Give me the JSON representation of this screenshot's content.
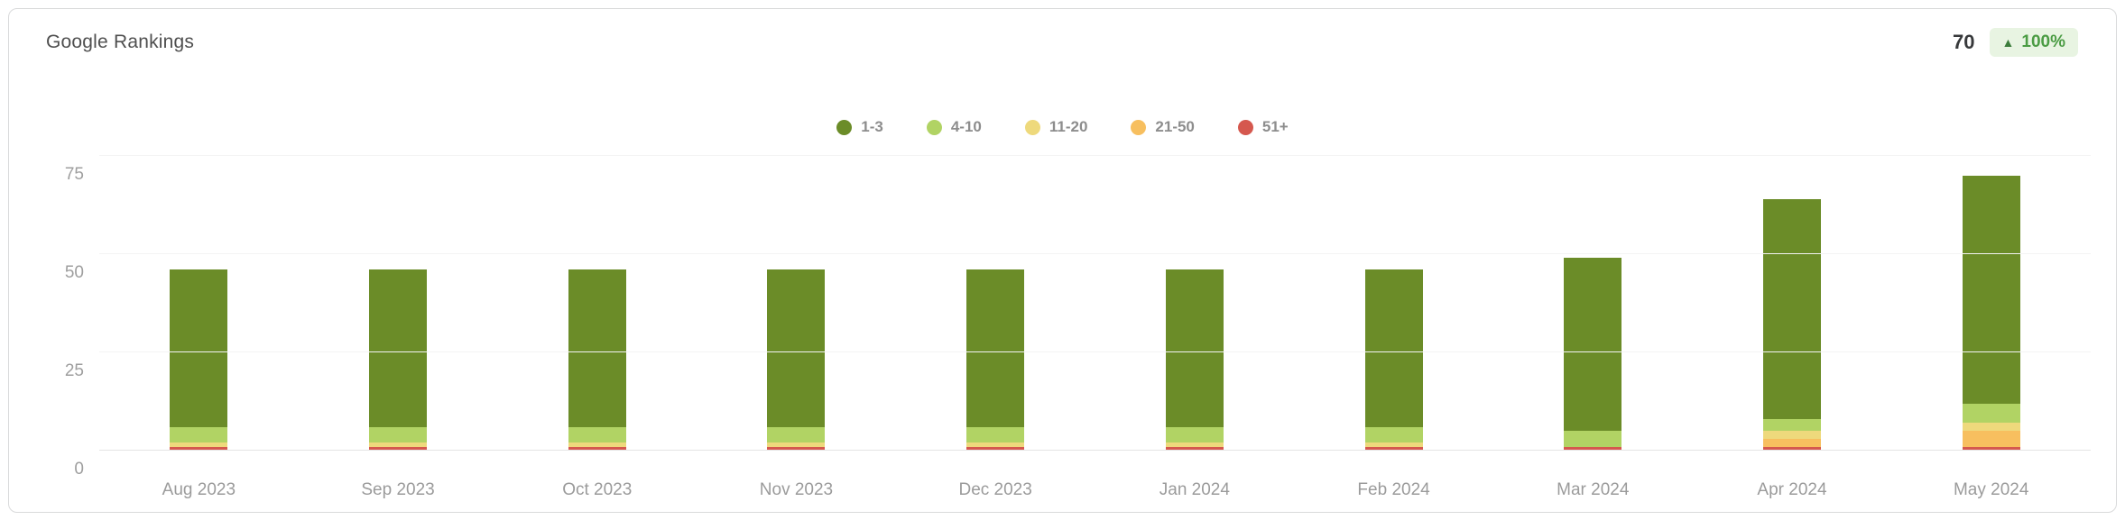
{
  "header": {
    "title": "Google Rankings",
    "current_value": "70",
    "change": "100%"
  },
  "icons": {
    "trend_up": "▲"
  },
  "chart_data": {
    "type": "bar",
    "stacked": true,
    "title": "Google Rankings",
    "xlabel": "",
    "ylabel": "",
    "categories": [
      "Aug 2023",
      "Sep 2023",
      "Oct 2023",
      "Nov 2023",
      "Dec 2023",
      "Jan 2024",
      "Feb 2024",
      "Mar 2024",
      "Apr 2024",
      "May 2024"
    ],
    "series": [
      {
        "name": "1-3",
        "color": "#6b8c28",
        "values": [
          40,
          40,
          40,
          40,
          40,
          40,
          40,
          44,
          56,
          58
        ]
      },
      {
        "name": "4-10",
        "color": "#b1d364",
        "values": [
          4,
          4,
          4,
          4,
          4,
          4,
          4,
          4,
          3,
          5
        ]
      },
      {
        "name": "11-20",
        "color": "#eed97c",
        "values": [
          1,
          1,
          1,
          1,
          1,
          1,
          1,
          0,
          2,
          2
        ]
      },
      {
        "name": "21-50",
        "color": "#f7bf5f",
        "values": [
          0,
          0,
          0,
          0,
          0,
          0,
          0,
          0,
          2,
          4
        ]
      },
      {
        "name": "51+",
        "color": "#d5584e",
        "values": [
          1,
          1,
          1,
          1,
          1,
          1,
          1,
          1,
          1,
          1
        ]
      }
    ],
    "totals": [
      46,
      46,
      46,
      46,
      46,
      46,
      46,
      49,
      64,
      70
    ],
    "y_ticks": [
      0,
      25,
      50,
      75
    ],
    "ylim": [
      0,
      77
    ],
    "grid": true,
    "legend_position": "top-center",
    "badge_colors": {
      "background": "#e8f4e2",
      "text": "#4b9c44",
      "arrow": "#3c7d3c"
    }
  }
}
